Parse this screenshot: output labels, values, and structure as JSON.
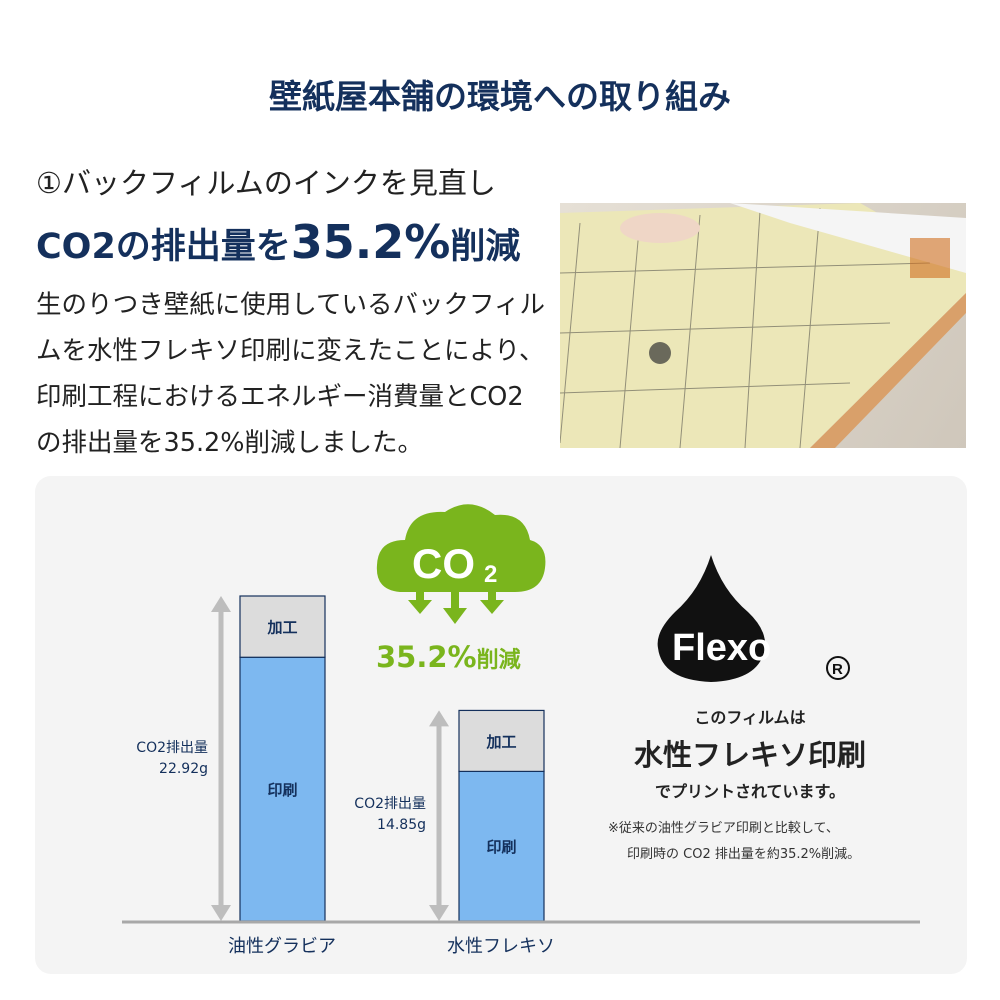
{
  "header": {
    "title": "壁紙屋本舗の環境への取り組み"
  },
  "section": {
    "subtitle": "①バックフィルムのインクを見直し",
    "headline_pre": "CO2の排出量を",
    "headline_pct": "35.2%",
    "headline_post": "削減",
    "body": "生のりつき壁紙に使用しているバックフィルムを水性フレキソ印刷に変えたことにより、印刷工程におけるエネルギー消費量とCO2の排出量を35.2%削減しました。"
  },
  "badge": {
    "cloud_text": "CO2",
    "reduction": "35.2%",
    "reduction_suffix": "削減",
    "color": "#7ab51d"
  },
  "flexo": {
    "logo": "Flexo",
    "registered": "®",
    "line1": "このフィルムは",
    "line2": "水性フレキソ印刷",
    "line3": "でプリントされています。",
    "note1": "※従来の油性グラビア印刷と比較して、",
    "note2": "印刷時の CO2 排出量を約35.2%削減。"
  },
  "chart_data": {
    "type": "bar",
    "stacked": true,
    "categories": [
      "油性グラビア",
      "水性フレキソ"
    ],
    "segment_labels": [
      "印刷",
      "加工"
    ],
    "series": [
      {
        "name": "印刷",
        "values": [
          18.6,
          10.55
        ],
        "color": "#7db8f0"
      },
      {
        "name": "加工",
        "values": [
          4.32,
          4.3
        ],
        "color": "#dcdcdc"
      }
    ],
    "totals": [
      22.92,
      14.85
    ],
    "total_labels": [
      {
        "label": "CO2排出量",
        "value": "22.92g"
      },
      {
        "label": "CO2排出量",
        "value": "14.85g"
      }
    ],
    "ylim": [
      0,
      22.92
    ],
    "grid": false
  }
}
